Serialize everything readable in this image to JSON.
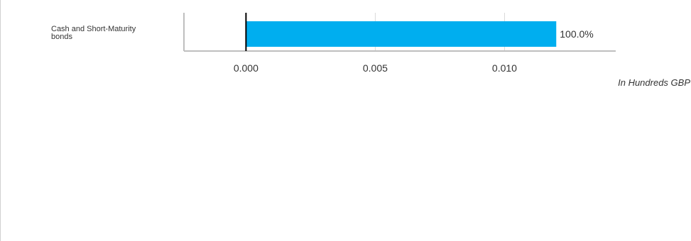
{
  "chart_data": {
    "type": "bar",
    "orientation": "horizontal",
    "categories": [
      "Cash and Short-Maturity bonds"
    ],
    "values": [
      0.012
    ],
    "data_labels": [
      "100.0%"
    ],
    "xlim": [
      -0.0024,
      0.0143
    ],
    "xticks": [
      0.0,
      0.005,
      0.01
    ],
    "xtick_labels": [
      "0.000",
      "0.005",
      "0.010"
    ],
    "unit_label": "In Hundreds GBP",
    "bar_color": "#00aeef",
    "grid": "vertical",
    "legend": "none"
  }
}
